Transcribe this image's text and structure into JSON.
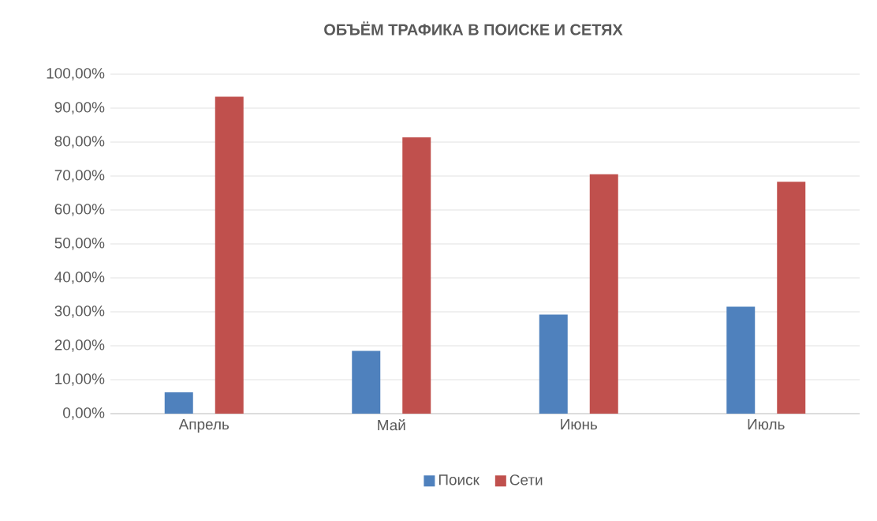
{
  "chart_data": {
    "type": "bar",
    "title": "ОБЪЁМ ТРАФИКА В ПОИСКЕ И СЕТЯХ",
    "categories": [
      "Апрель",
      "Май",
      "Июнь",
      "Июль"
    ],
    "series": [
      {
        "name": "Поиск",
        "color": "#4f81bd",
        "values": [
          6.3,
          18.5,
          29.2,
          31.5
        ]
      },
      {
        "name": "Сети",
        "color": "#c0504d",
        "values": [
          93.4,
          81.4,
          70.5,
          68.3
        ]
      }
    ],
    "ylim": [
      0,
      100
    ],
    "yticks": [
      {
        "value": 0,
        "label": "0,00%"
      },
      {
        "value": 10,
        "label": "10,00%"
      },
      {
        "value": 20,
        "label": "20,00%"
      },
      {
        "value": 30,
        "label": "30,00%"
      },
      {
        "value": 40,
        "label": "40,00%"
      },
      {
        "value": 50,
        "label": "50,00%"
      },
      {
        "value": 60,
        "label": "60,00%"
      },
      {
        "value": 70,
        "label": "70,00%"
      },
      {
        "value": 80,
        "label": "80,00%"
      },
      {
        "value": 90,
        "label": "90,00%"
      },
      {
        "value": 100,
        "label": "100,00%"
      }
    ],
    "grid": "y",
    "legend": "bottom"
  }
}
